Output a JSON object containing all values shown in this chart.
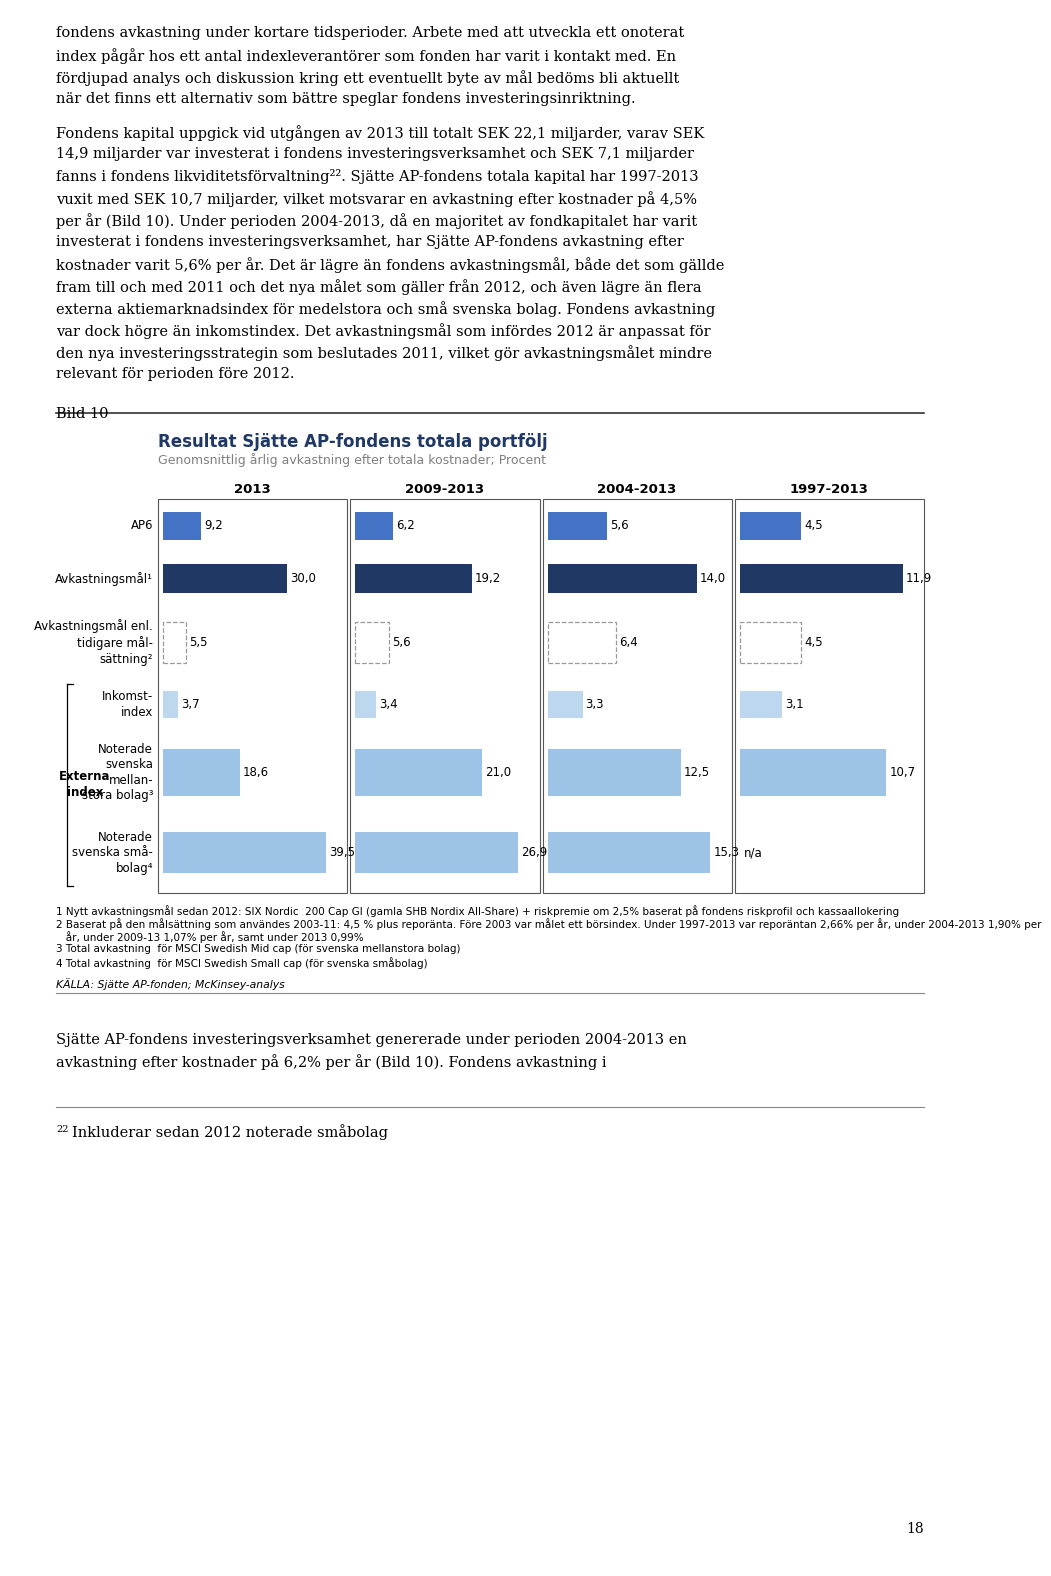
{
  "page_top_text_lines": [
    "fondens avkastning under kortare tidsperioder. Arbete med att utveckla ett onoterat",
    "index pågår hos ett antal indexleverantörer som fonden har varit i kontakt med. En",
    "fördjupad analys och diskussion kring ett eventuellt byte av mål bedöms bli aktuellt",
    "när det finns ett alternativ som bättre speglar fondens investeringsinriktning."
  ],
  "paragraph1_lines": [
    "Fondens kapital uppgick vid utgången av 2013 till totalt SEK 22,1 miljarder, varav SEK",
    "14,9 miljarder var investerat i fondens investeringsverksamhet och SEK 7,1 miljarder",
    "fanns i fondens likviditetsförvaltning²². Sjätte AP-fondens totala kapital har 1997-2013",
    "vuxit med SEK 10,7 miljarder, vilket motsvarar en avkastning efter kostnader på 4,5%",
    "per år (Bild 10). Under perioden 2004-2013, då en majoritet av fondkapitalet har varit",
    "investerat i fondens investeringsverksamhet, har Sjätte AP-fondens avkastning efter",
    "kostnader varit 5,6% per år. Det är lägre än fondens avkastningsmål, både det som gällde",
    "fram till och med 2011 och det nya målet som gäller från 2012, och även lägre än flera",
    "externa aktiemarknadsindex för medelstora och små svenska bolag. Fondens avkastning",
    "var dock högre än inkomstindex. Det avkastningsmål som infördes 2012 är anpassat för",
    "den nya investeringsstrategin som beslutades 2011, vilket gör avkastningsmålet mindre",
    "relevant för perioden före 2012."
  ],
  "bild_label": "Bild 10",
  "chart_title": "Resultat Sjätte AP-fondens totala portfölj",
  "chart_subtitle": "Genomsnittlig årlig avkastning efter totala kostnader; Procent",
  "period_labels": [
    "2013",
    "2009-2013",
    "2004-2013",
    "1997-2013"
  ],
  "values": {
    "AP6": [
      9.2,
      6.2,
      5.6,
      4.5
    ],
    "Avk1": [
      30.0,
      19.2,
      14.0,
      11.9
    ],
    "Avk2": [
      5.5,
      5.6,
      6.4,
      4.5
    ],
    "Inkomst": [
      3.7,
      3.4,
      3.3,
      3.1
    ],
    "Mellanstor": [
      18.6,
      21.0,
      12.5,
      10.7
    ],
    "Smabolag": [
      39.5,
      26.9,
      15.3,
      null
    ]
  },
  "colors": {
    "AP6": "#4472C4",
    "Avk1": "#1F3864",
    "Avk2_border": "#999999",
    "Inkomst": "#BDD7EE",
    "Mellanstor": "#9DC3E6",
    "Smabolag": "#9DC3E6"
  },
  "row_display_labels": [
    "AP6",
    "Avkastningsmål¹",
    "Avkastningsmål enl.\ntidigare mål-\nsättning²",
    "Inkomst-\nindex",
    "Noterade\nsvenska\nmellan-\nstora bolag³",
    "Noterade\nsvenska små-\nbolag⁴"
  ],
  "footnotes": [
    "1 Nytt avkastningsmål sedan 2012: SIX Nordic  200 Cap GI (gamla SHB Nordix All-Share) + riskpremie om 2,5% baserat på fondens riskprofil och kassaallokering",
    "2 Baserat på den målsättning som användes 2003-11: 4,5 % plus reporänta. Före 2003 var målet ett börsindex. Under 1997-2013 var reporäntan 2,66% per år, under 2004-2013 1,90% per",
    "   år, under 2009-13 1,07% per år, samt under 2013 0,99%",
    "3 Total avkastning  för MSCI Swedish Mid cap (för svenska mellanstora bolag)",
    "4 Total avkastning  för MSCI Swedish Small cap (för svenska småbolag)"
  ],
  "source_label": "KÄLLA: Sjätte AP-fonden; McKinsey-analys",
  "bottom_text_lines": [
    "Sjätte AP-fondens investeringsverksamhet genererade under perioden 2004-2013 en",
    "avkastning efter kostnader på 6,2% per år (Bild 10). Fondens avkastning i"
  ],
  "bottom_footnote_sup": "22",
  "bottom_footnote_text": "Inkluderar sedan 2012 noterade småbolag",
  "page_number": "18"
}
